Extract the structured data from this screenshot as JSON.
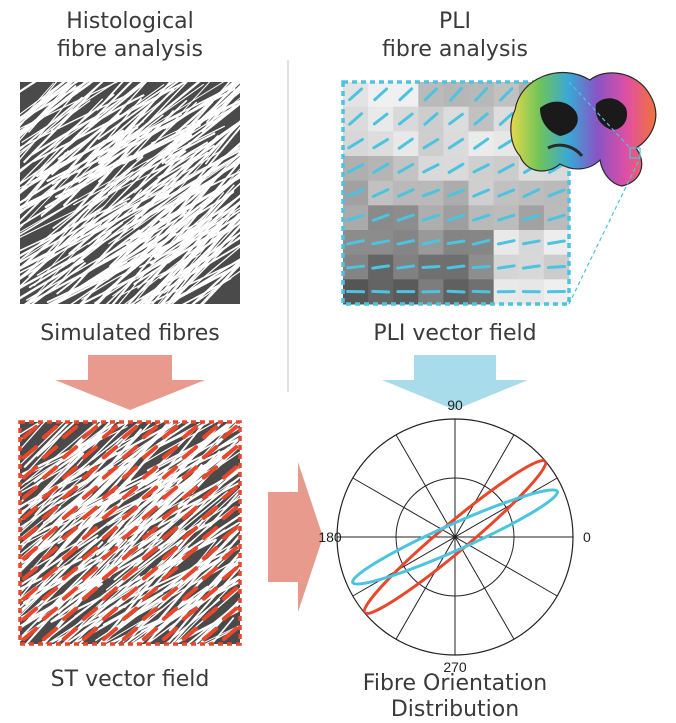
{
  "titles": {
    "histology_line1": "Histological",
    "histology_line2": "fibre analysis",
    "pli_line1": "PLI",
    "pli_line2": "fibre analysis"
  },
  "captions": {
    "simulated": "Simulated fibres",
    "pli_field": "PLI vector field",
    "st_field": "ST vector field",
    "fod_line1": "Fibre Orientation",
    "fod_line2": "Distribution"
  },
  "polar": {
    "angle_labels": {
      "top": "90",
      "left": "180",
      "right": "0",
      "bottom": "270"
    }
  },
  "colors": {
    "fibre_dark": "#4a4a4a",
    "pli_blue": "#4cc3e0",
    "st_red": "#e8472b",
    "arrow_salmon": "#e89a8c",
    "arrow_lightblue": "#a9dcea"
  }
}
